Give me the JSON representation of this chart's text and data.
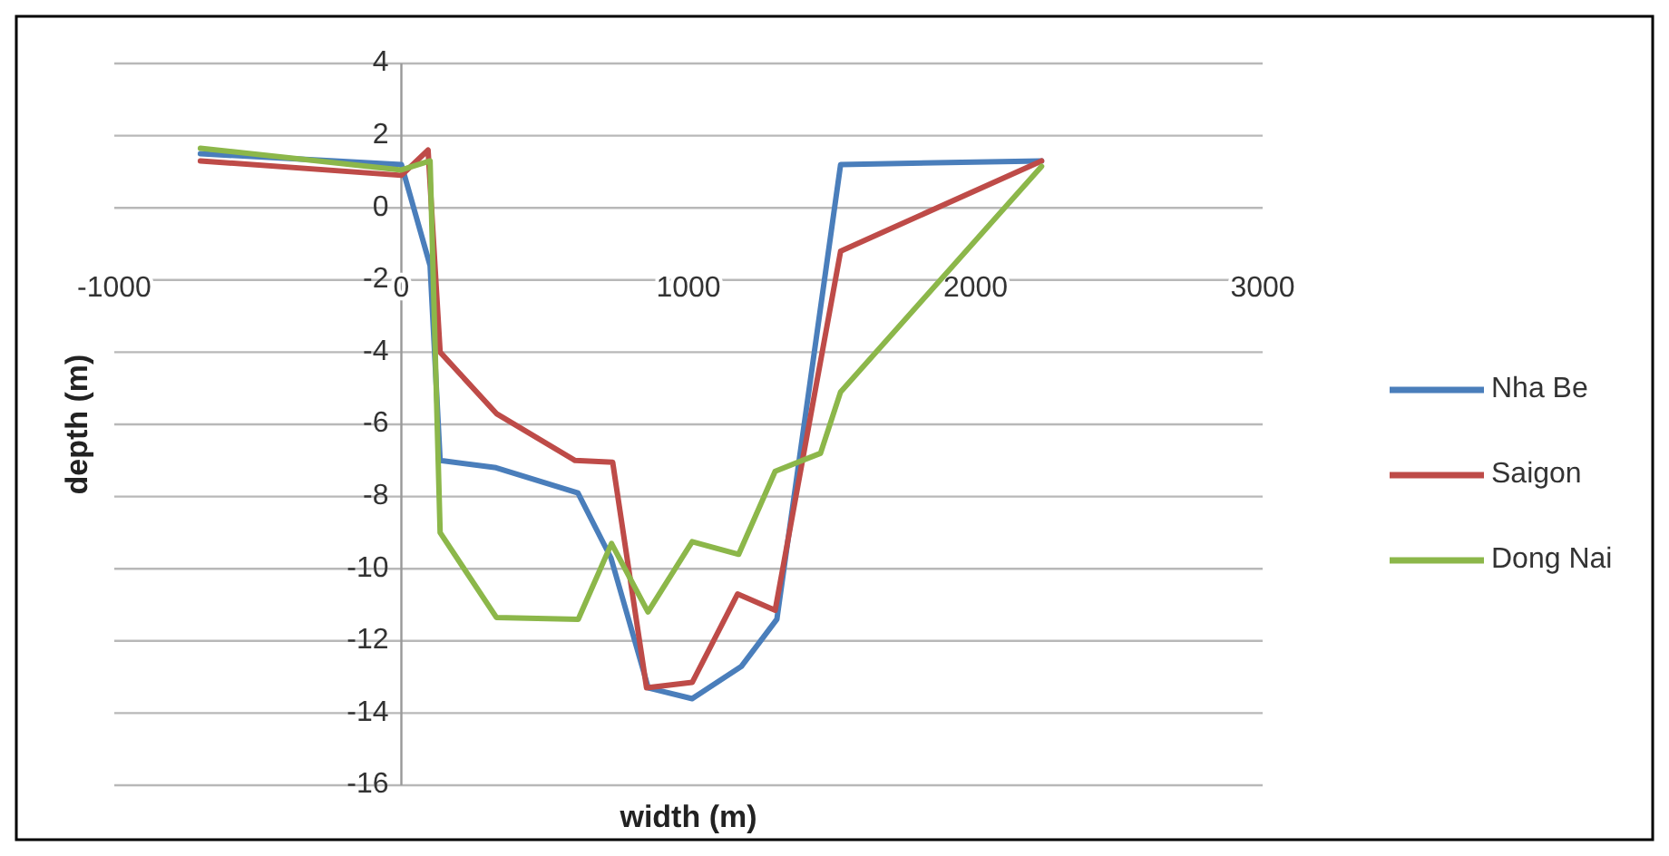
{
  "chart_data": {
    "type": "line",
    "xlabel": "width (m)",
    "ylabel": "depth (m)",
    "xlim": [
      -1000,
      3000
    ],
    "xticks": [
      -1000,
      0,
      1000,
      2000,
      3000
    ],
    "ylim": [
      -16,
      4
    ],
    "yticks": [
      -16,
      -14,
      -12,
      -10,
      -8,
      -6,
      -4,
      -2,
      0,
      2,
      4
    ],
    "grid": "y",
    "legend": "right",
    "marker": "none",
    "line_style": "solid",
    "series": [
      {
        "name": "Nha Be",
        "color": "#4a7ebb",
        "x": [
          -700,
          0,
          100,
          135,
          330,
          615,
          730,
          860,
          1013,
          1185,
          1308,
          1530,
          2230
        ],
        "values": [
          1.5,
          1.2,
          -1.6,
          -7.0,
          -7.2,
          -7.9,
          -9.7,
          -13.3,
          -13.6,
          -12.7,
          -11.4,
          1.2,
          1.3
        ]
      },
      {
        "name": "Saigon",
        "color": "#be4b48",
        "x": [
          -700,
          0,
          93,
          135,
          331,
          605,
          736,
          854,
          1013,
          1171,
          1302,
          1530,
          2230
        ],
        "values": [
          1.3,
          0.9,
          1.6,
          -4.0,
          -5.7,
          -7.0,
          -7.05,
          -13.3,
          -13.15,
          -10.7,
          -11.15,
          -1.2,
          1.3
        ]
      },
      {
        "name": "Dong Nai",
        "color": "#8cb74a",
        "x": [
          -700,
          0,
          100,
          135,
          331,
          616,
          732,
          859,
          1013,
          1175,
          1302,
          1460,
          1530,
          2230
        ],
        "values": [
          1.65,
          1.05,
          1.3,
          -9.0,
          -11.35,
          -11.4,
          -9.3,
          -11.2,
          -9.25,
          -9.6,
          -7.3,
          -6.8,
          -5.1,
          1.15
        ]
      }
    ]
  }
}
